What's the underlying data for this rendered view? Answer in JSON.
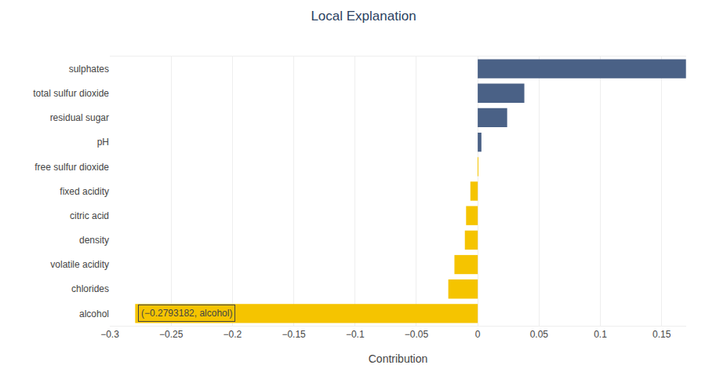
{
  "chart_data": {
    "type": "bar",
    "orientation": "horizontal",
    "title": "Local Explanation",
    "x_label": "Contribution",
    "categories": [
      "sulphates",
      "total sulfur dioxide",
      "residual sugar",
      "pH",
      "free sulfur dioxide",
      "fixed acidity",
      "citric acid",
      "density",
      "volatile acidity",
      "chlorides",
      "alcohol"
    ],
    "values": [
      0.1698,
      0.038,
      0.024,
      0.003,
      0.0005,
      -0.006,
      -0.0095,
      -0.0105,
      -0.019,
      -0.024,
      -0.2793182
    ],
    "colors": [
      "#4a6186",
      "#4a6186",
      "#4a6186",
      "#4a6186",
      "#f5c400",
      "#f5c400",
      "#f5c400",
      "#f5c400",
      "#f5c400",
      "#f5c400",
      "#f5c400"
    ],
    "xlim": [
      -0.3,
      0.17
    ],
    "xticks": [
      {
        "value": -0.3,
        "label": "−0.3"
      },
      {
        "value": -0.25,
        "label": "−0.25"
      },
      {
        "value": -0.2,
        "label": "−0.2"
      },
      {
        "value": -0.15,
        "label": "−0.15"
      },
      {
        "value": -0.1,
        "label": "−0.1"
      },
      {
        "value": -0.05,
        "label": "−0.05"
      },
      0,
      0.05,
      0.1,
      0.15
    ],
    "grid": true,
    "annotations": [
      {
        "text": "(−0.2793182, alcohol)",
        "category": "alcohol"
      }
    ]
  }
}
